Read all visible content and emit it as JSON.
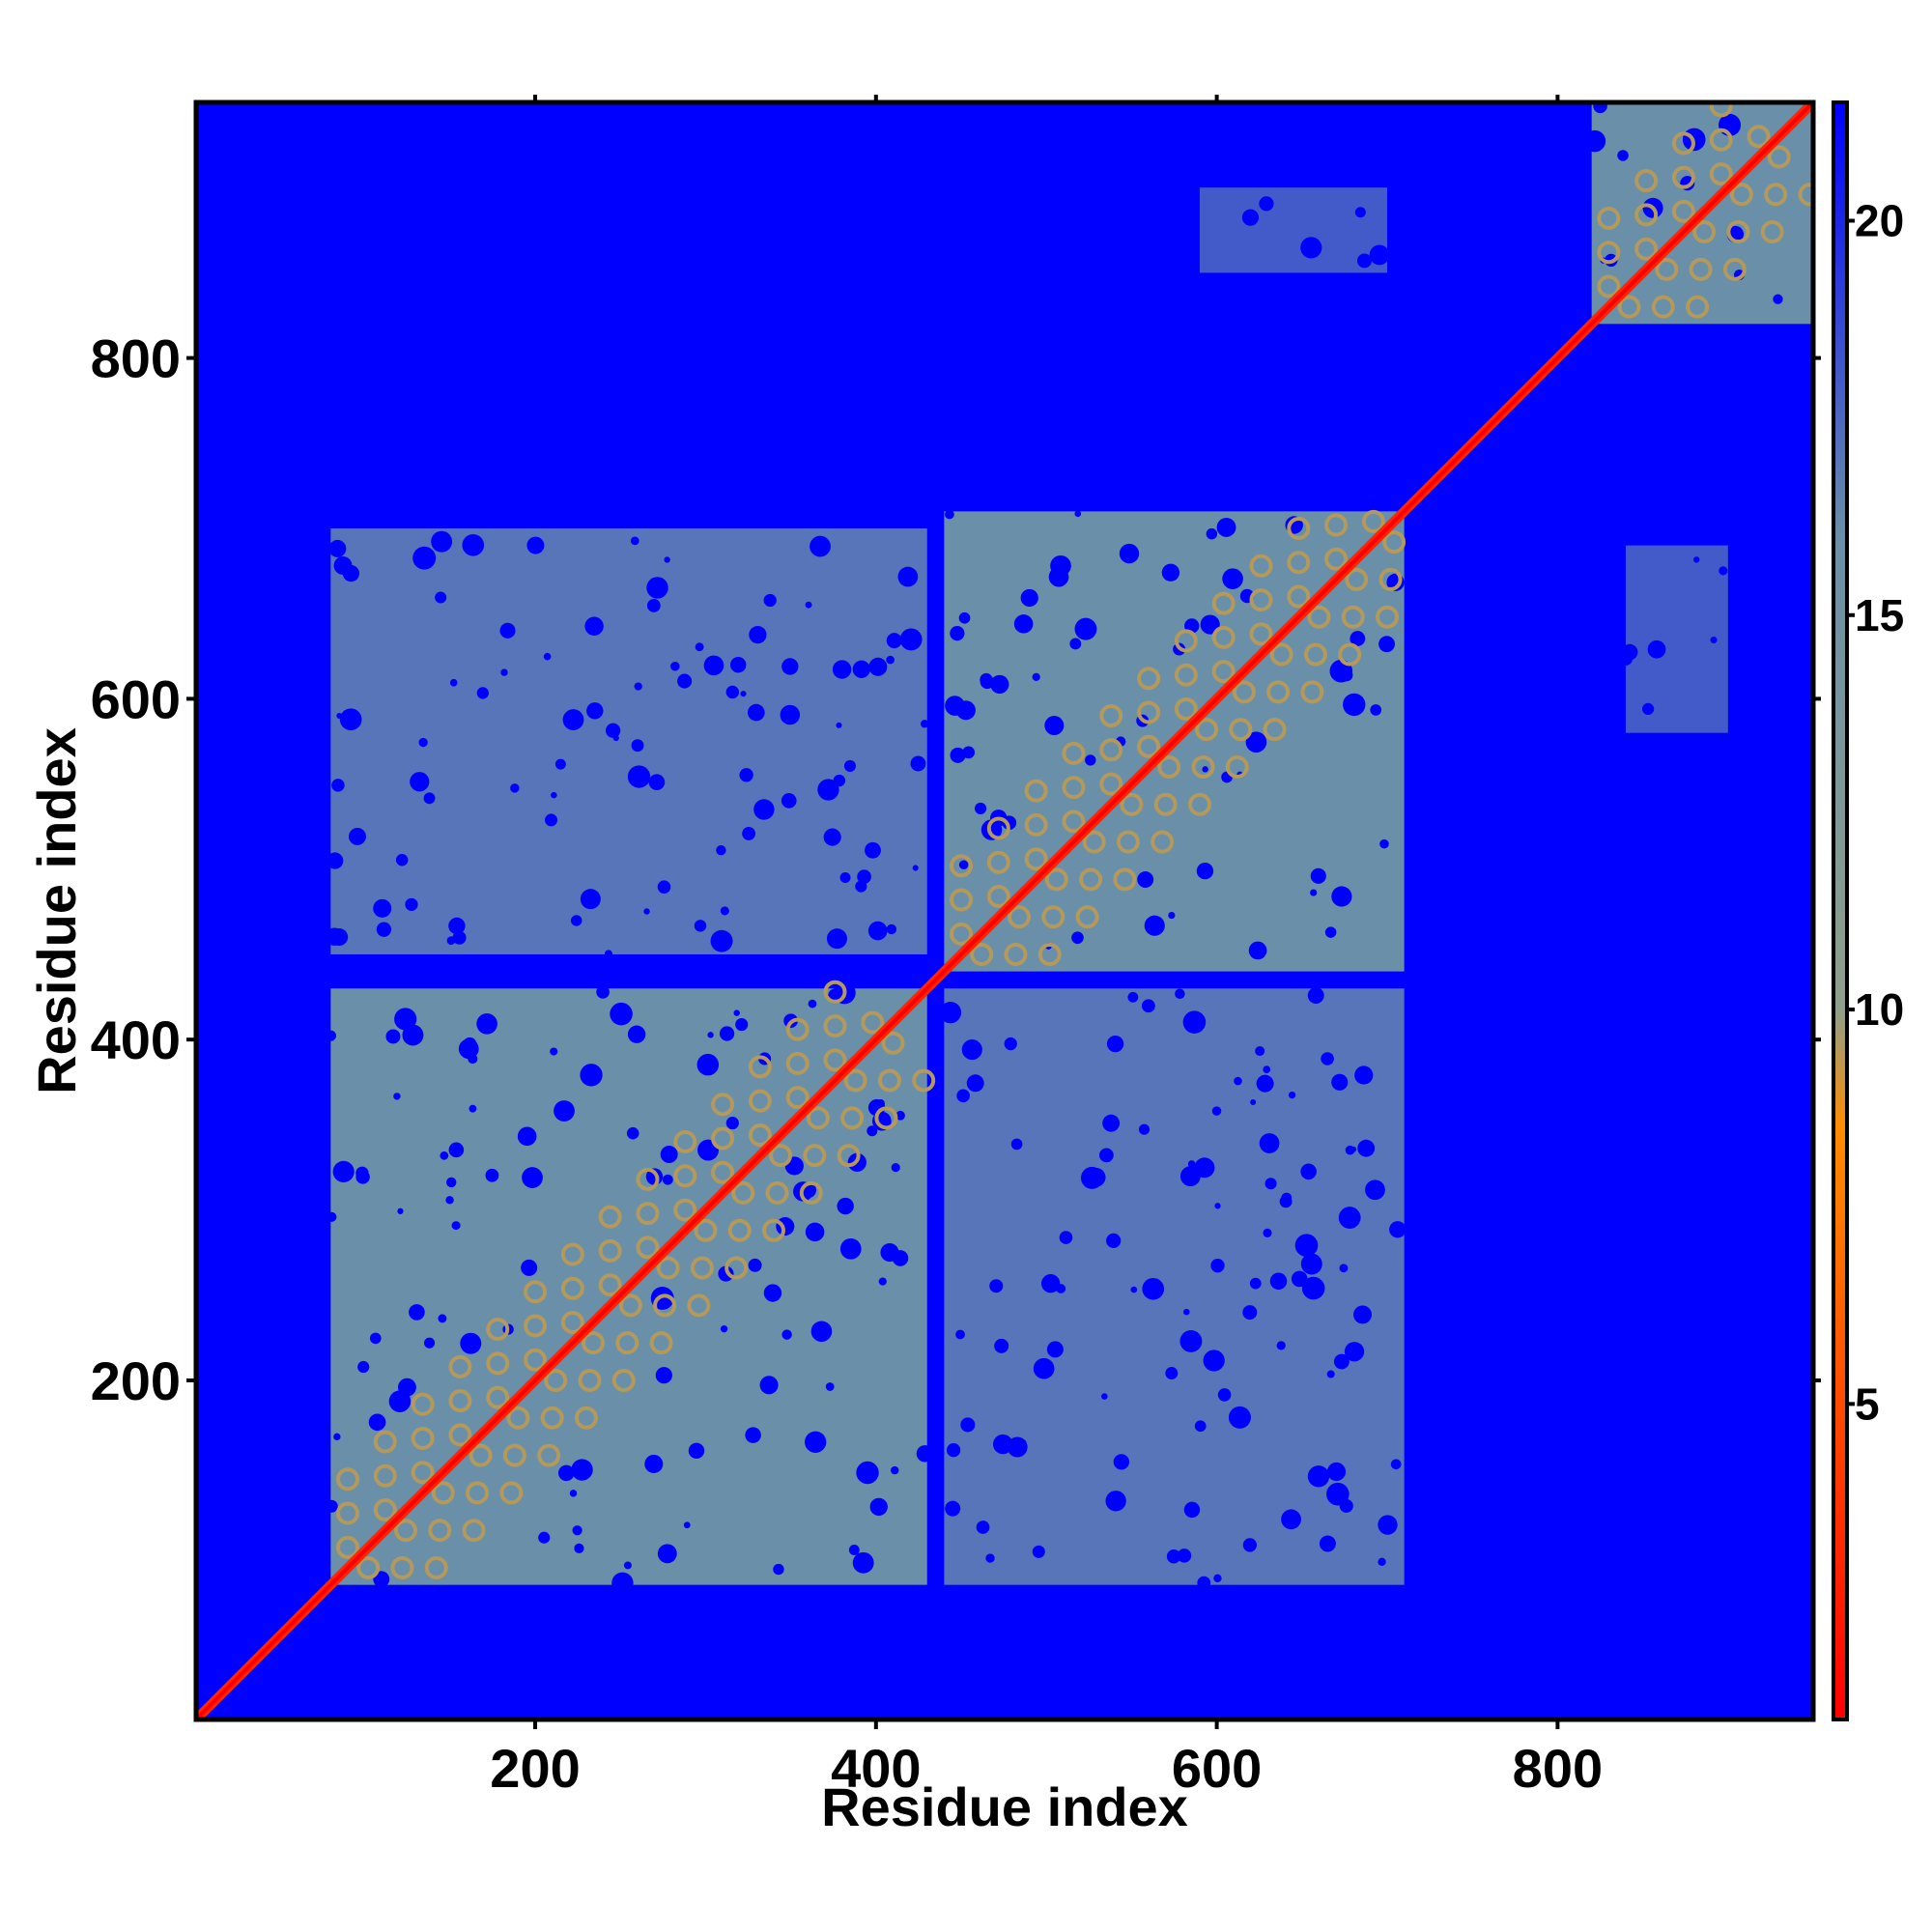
{
  "chart_data": {
    "type": "heatmap",
    "title": "",
    "xlabel": "Residue index",
    "ylabel": "Residue index",
    "xlim": [
      1,
      950
    ],
    "ylim": [
      1,
      950
    ],
    "x_ticks": [
      200,
      400,
      600,
      800
    ],
    "y_ticks": [
      200,
      400,
      600,
      800
    ],
    "colorbar": {
      "ticks": [
        5,
        10,
        15,
        20
      ],
      "range": [
        1,
        21.5
      ],
      "colors": [
        "#ff0000",
        "#ff8c00",
        "#8fa08a",
        "#6a8fa8",
        "#0000ff"
      ],
      "stops": [
        1,
        8.5,
        10,
        16,
        21.5
      ]
    },
    "background_value": 21.5,
    "domains": [
      {
        "start": 80,
        "end": 430,
        "value": 16
      },
      {
        "start": 440,
        "end": 710,
        "value": 16
      },
      {
        "start": 820,
        "end": 950,
        "value": 16
      }
    ],
    "off_diagonal_blocks": [
      {
        "x": [
          80,
          430
        ],
        "y": [
          450,
          700
        ],
        "value": 17
      },
      {
        "x": [
          440,
          710
        ],
        "y": [
          80,
          430
        ],
        "value": 17
      },
      {
        "x": [
          590,
          700
        ],
        "y": [
          850,
          900
        ],
        "value": 18
      },
      {
        "x": [
          840,
          900
        ],
        "y": [
          580,
          690
        ],
        "value": 18
      }
    ],
    "diagonal_value": 3
  }
}
